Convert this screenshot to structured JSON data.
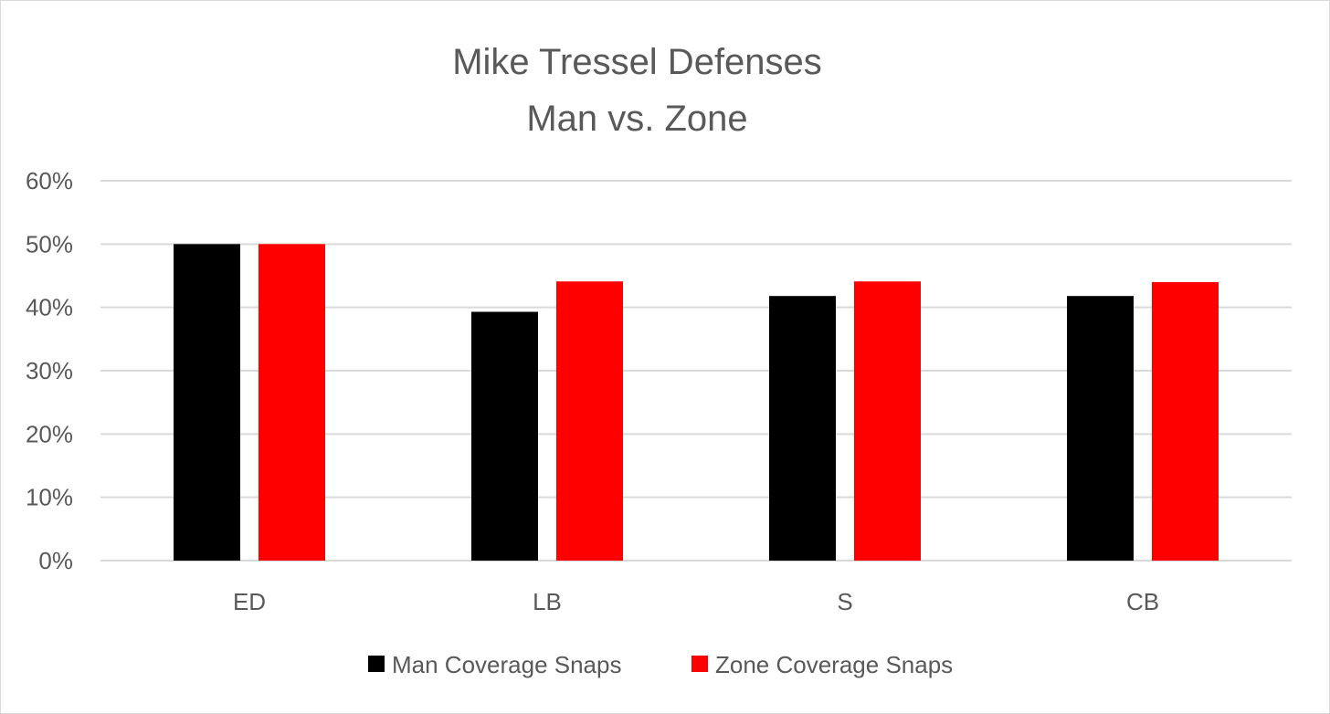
{
  "chart_data": {
    "type": "bar",
    "title": "Mike Tressel Defenses",
    "subtitle": "Man vs. Zone",
    "categories": [
      "ED",
      "LB",
      "S",
      "CB"
    ],
    "series": [
      {
        "name": "Man Coverage Snaps",
        "color": "#000000",
        "values": [
          50,
          39.3,
          41.8,
          41.8
        ]
      },
      {
        "name": "Zone Coverage Snaps",
        "color": "#ff0000",
        "values": [
          50,
          44.1,
          44.1,
          44.0
        ]
      }
    ],
    "ylim": [
      0,
      60
    ],
    "yticks": [
      "0%",
      "10%",
      "20%",
      "30%",
      "40%",
      "50%",
      "60%"
    ],
    "grid": true,
    "legend_position": "bottom"
  }
}
